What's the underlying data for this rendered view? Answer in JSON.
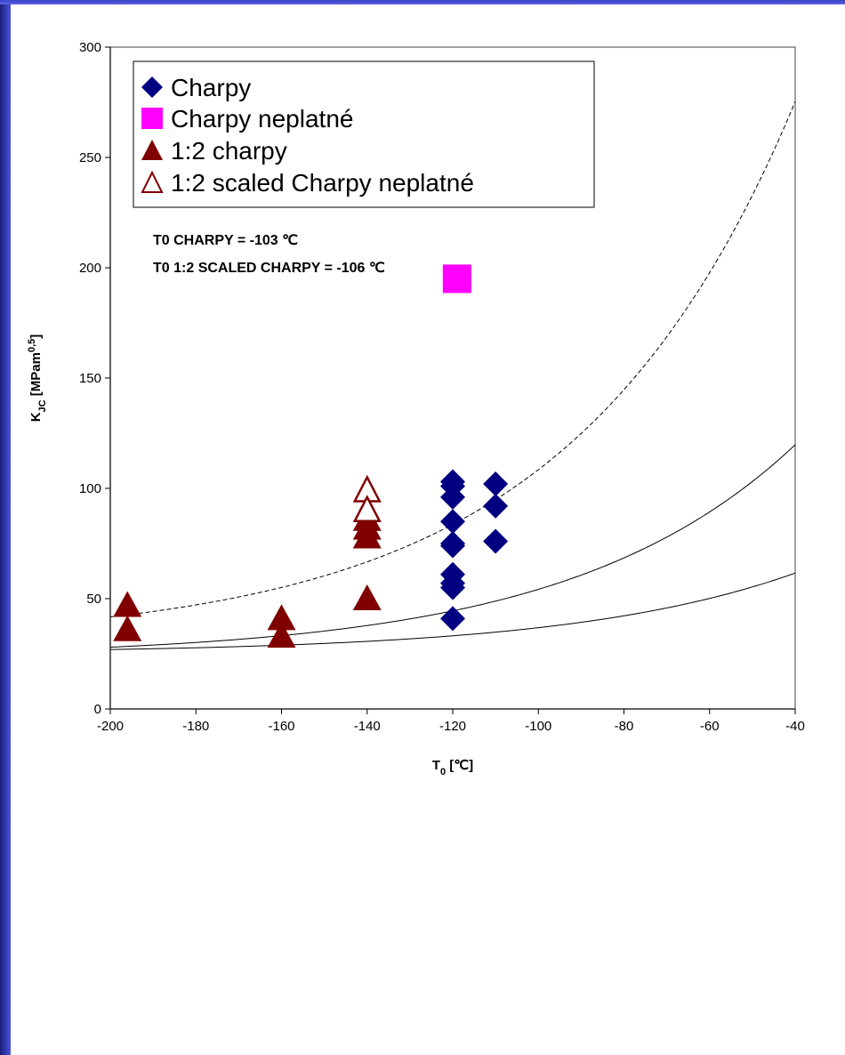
{
  "chart_data": {
    "type": "scatter",
    "xlabel": "T",
    "xlabel_sub": "0",
    "xlabel_unit": " [℃]",
    "ylabel": "K",
    "ylabel_sub": "JC",
    "ylabel_unit": " [MPam",
    "ylabel_sup": "0,5",
    "ylabel_close": "]",
    "xlim": [
      -200,
      -40
    ],
    "ylim": [
      0,
      300
    ],
    "x_ticks": [
      -200,
      -180,
      -160,
      -140,
      -120,
      -100,
      -80,
      -60,
      -40
    ],
    "y_ticks": [
      0,
      50,
      100,
      150,
      200,
      250,
      300
    ],
    "x_tick_labels": [
      "-200",
      "-180",
      "-160",
      "-140",
      "-120",
      "-100",
      "-80",
      "-60",
      "-40"
    ],
    "y_tick_labels": [
      "0",
      "50",
      "100",
      "150",
      "200",
      "250",
      "300"
    ],
    "legend_placement": "top-left",
    "annotations": [
      "T0 CHARPY = -103 ℃",
      "T0 1:2 SCALED CHARPY = -106 ℃"
    ],
    "series": [
      {
        "name": "Charpy",
        "marker": "diamond",
        "color": "#000080",
        "points": [
          [
            -120,
            103
          ],
          [
            -120,
            101
          ],
          [
            -120,
            96
          ],
          [
            -120,
            85
          ],
          [
            -120,
            75
          ],
          [
            -120,
            74
          ],
          [
            -120,
            61
          ],
          [
            -120,
            57
          ],
          [
            -120,
            55
          ],
          [
            -120,
            41
          ],
          [
            -110,
            102
          ],
          [
            -110,
            92
          ],
          [
            -110,
            76
          ]
        ]
      },
      {
        "name": "Charpy neplatné",
        "marker": "square",
        "color": "#ff00ff",
        "points": [
          [
            -119,
            195
          ]
        ]
      },
      {
        "name": "1:2 charpy",
        "marker": "triangle",
        "color": "#800000",
        "points": [
          [
            -196,
            47
          ],
          [
            -196,
            36
          ],
          [
            -160,
            41
          ],
          [
            -160,
            33
          ],
          [
            -140,
            86
          ],
          [
            -140,
            82
          ],
          [
            -140,
            78
          ],
          [
            -140,
            50
          ]
        ]
      },
      {
        "name": "1:2 scaled Charpy neplatné",
        "marker": "triangle-open",
        "color": "#800000",
        "points": [
          [
            -140,
            99
          ],
          [
            -140,
            90
          ]
        ]
      }
    ],
    "curves": [
      {
        "style": "solid",
        "color": "#000000",
        "A": 25.2,
        "B": 11.0,
        "C": 0.019,
        "T0": -103
      },
      {
        "style": "dashed",
        "color": "#000000",
        "A": 30,
        "B": 70,
        "C": 0.019,
        "T0": -106
      },
      {
        "style": "solid",
        "color": "#000000",
        "A": 23.4,
        "B": 27.5,
        "C": 0.019,
        "T0": -106
      }
    ]
  }
}
